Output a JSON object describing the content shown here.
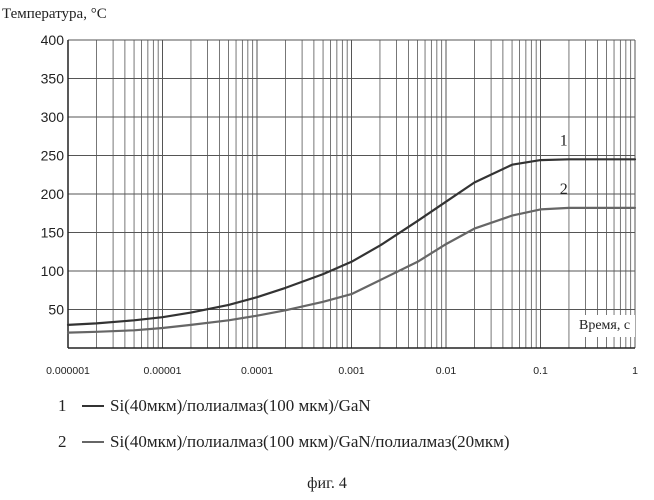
{
  "chart_data": {
    "type": "line",
    "title": "",
    "ylabel": "Температура, °С",
    "xlabel": "Время, с",
    "xscale": "log",
    "xlim": [
      1e-06,
      1
    ],
    "ylim": [
      0,
      400
    ],
    "grid": true,
    "xticks": [
      "0.000001",
      "0.00001",
      "0.0001",
      "0.001",
      "0.01",
      "0.1",
      "1"
    ],
    "yticks": [
      "50",
      "100",
      "150",
      "200",
      "250",
      "300",
      "350",
      "400"
    ],
    "series": [
      {
        "name": "1",
        "color": "#333333",
        "x": [
          1e-06,
          2e-06,
          5e-06,
          1e-05,
          2e-05,
          5e-05,
          0.0001,
          0.0002,
          0.0005,
          0.001,
          0.002,
          0.005,
          0.01,
          0.02,
          0.05,
          0.1,
          0.2,
          0.5,
          1
        ],
        "y": [
          30,
          32,
          36,
          40,
          46,
          56,
          66,
          78,
          96,
          112,
          133,
          165,
          190,
          215,
          238,
          244,
          245,
          245,
          245
        ]
      },
      {
        "name": "2",
        "color": "#666666",
        "x": [
          1e-06,
          2e-06,
          5e-06,
          1e-05,
          2e-05,
          5e-05,
          0.0001,
          0.0002,
          0.0005,
          0.001,
          0.002,
          0.005,
          0.01,
          0.02,
          0.05,
          0.1,
          0.2,
          0.5,
          1
        ],
        "y": [
          20,
          21,
          23,
          26,
          30,
          36,
          42,
          49,
          60,
          70,
          88,
          112,
          135,
          155,
          172,
          180,
          182,
          182,
          182
        ]
      }
    ]
  },
  "legend": [
    {
      "num": "1",
      "text": "Si(40мкм)/полиалмаз(100 мкм)/GaN",
      "color": "#333333"
    },
    {
      "num": "2",
      "text": "Si(40мкм)/полиалмаз(100 мкм)/GaN/полиалмаз(20мкм)",
      "color": "#666666"
    }
  ],
  "caption": "фиг. 4"
}
